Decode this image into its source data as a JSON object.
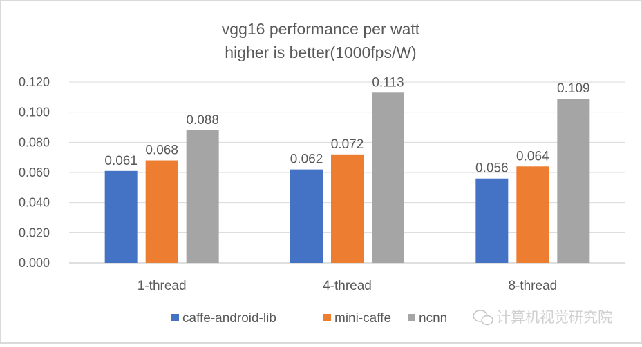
{
  "chart_data": {
    "type": "bar",
    "title": "vgg16 performance per watt",
    "subtitle": "higher is better(1000fps/W)",
    "xlabel": "",
    "ylabel": "",
    "ylim": [
      0,
      0.12
    ],
    "yticks": [
      "0.000",
      "0.020",
      "0.040",
      "0.060",
      "0.080",
      "0.100",
      "0.120"
    ],
    "grid": true,
    "legend_position": "bottom",
    "categories": [
      "1-thread",
      "4-thread",
      "8-thread"
    ],
    "series": [
      {
        "name": "caffe-android-lib",
        "color": "#4472C4",
        "values": [
          0.061,
          0.062,
          0.056
        ],
        "labels": [
          "0.061",
          "0.062",
          "0.056"
        ]
      },
      {
        "name": "mini-caffe",
        "color": "#ED7D31",
        "values": [
          0.068,
          0.072,
          0.064
        ],
        "labels": [
          "0.068",
          "0.072",
          "0.064"
        ]
      },
      {
        "name": "ncnn",
        "color": "#A5A5A5",
        "values": [
          0.088,
          0.113,
          0.109
        ],
        "labels": [
          "0.088",
          "0.113",
          "0.109"
        ]
      }
    ]
  },
  "watermark": "计算机视觉研究院"
}
